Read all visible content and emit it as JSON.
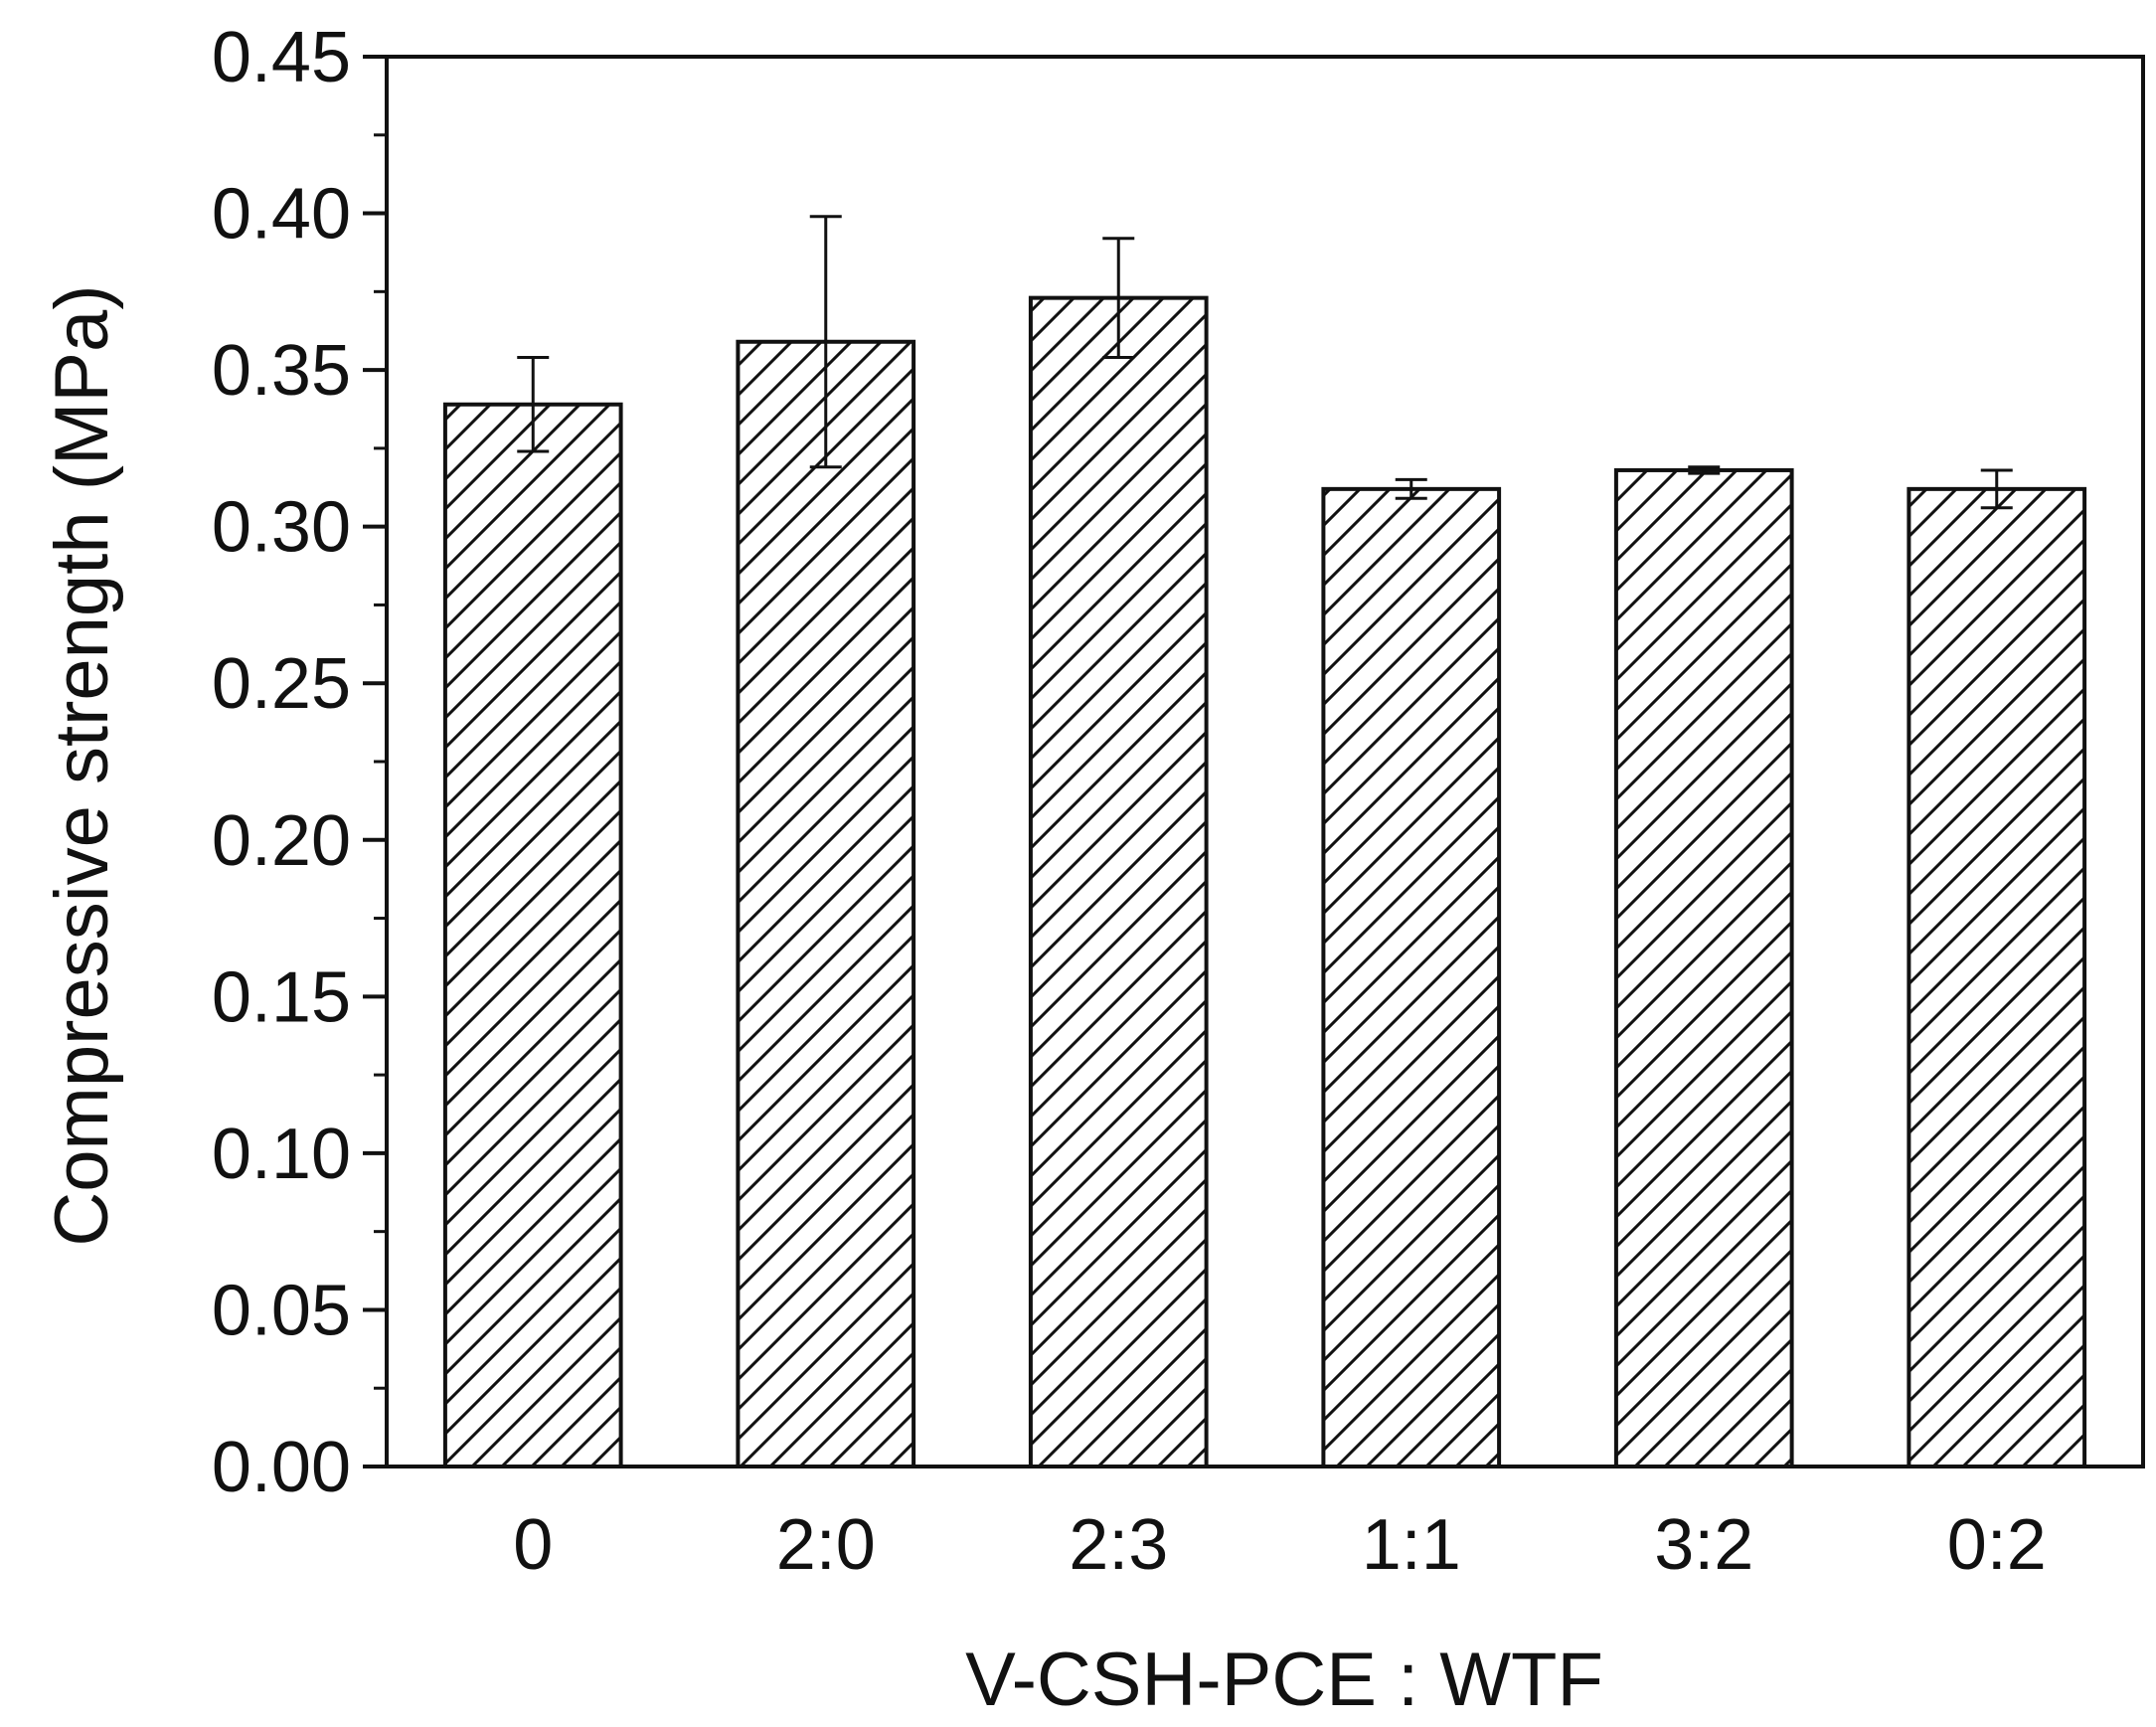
{
  "chart_data": {
    "type": "bar",
    "title": "",
    "xlabel": "V-CSH-PCE : WTF",
    "ylabel": "Compressive strength (MPa)",
    "categories": [
      "0",
      "2:0",
      "2:3",
      "1:1",
      "3:2",
      "0:2"
    ],
    "values": [
      0.339,
      0.359,
      0.373,
      0.312,
      0.318,
      0.312
    ],
    "errors": [
      0.015,
      0.04,
      0.019,
      0.003,
      0.001,
      0.006
    ],
    "ylim": [
      0,
      0.45
    ],
    "yticks": [
      "0.00",
      "0.05",
      "0.10",
      "0.15",
      "0.20",
      "0.25",
      "0.30",
      "0.35",
      "0.40",
      "0.45"
    ],
    "bar_pattern": "diagonal-hatch",
    "grid": false,
    "colors": {
      "bar_fill": "#ffffff",
      "bar_stroke": "#111111",
      "axis": "#111111"
    }
  }
}
